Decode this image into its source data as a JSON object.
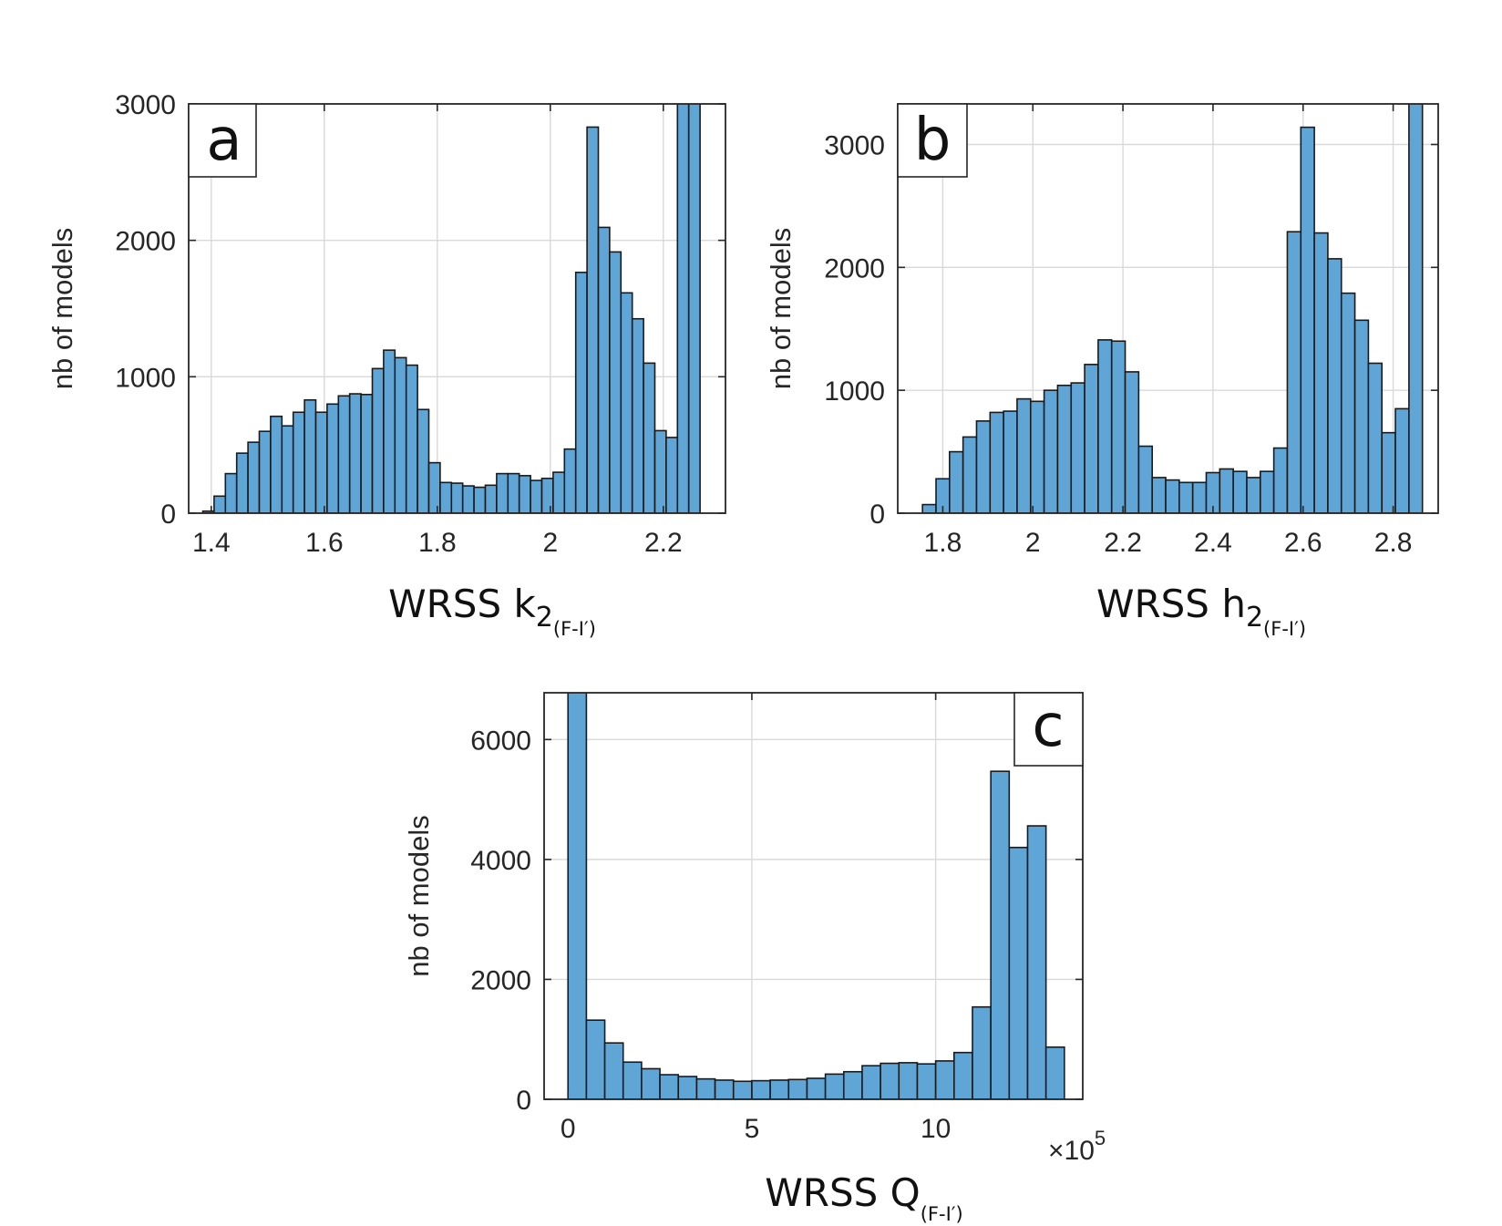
{
  "chart_data": [
    {
      "type": "bar",
      "panel_label": "a",
      "xlabel": "WRSS k",
      "xlabel_subscript": "2",
      "xlabel_subscript2": "(F-I′)",
      "ylabel": "nb of models",
      "xlim": [
        1.36,
        2.31
      ],
      "ylim": [
        0,
        3000
      ],
      "xticks": [
        1.4,
        1.6,
        1.8,
        2.0,
        2.2
      ],
      "xtick_labels": [
        "1.4",
        "1.6",
        "1.8",
        "2",
        "2.2"
      ],
      "yticks": [
        0,
        1000,
        2000,
        3000
      ],
      "ytick_labels": [
        "0",
        "1000",
        "2000",
        "3000"
      ],
      "grid": true,
      "bin_start": 1.385,
      "bin_width": 0.02,
      "values": [
        15,
        125,
        290,
        440,
        520,
        600,
        710,
        640,
        740,
        830,
        740,
        800,
        860,
        875,
        870,
        1060,
        1195,
        1140,
        1085,
        760,
        370,
        225,
        220,
        200,
        190,
        205,
        290,
        290,
        275,
        240,
        255,
        300,
        470,
        1765,
        2830,
        2095,
        1915,
        1615,
        1425,
        1100,
        605,
        555,
        3100,
        3100
      ]
    },
    {
      "type": "bar",
      "panel_label": "b",
      "xlabel": "WRSS h",
      "xlabel_subscript": "2",
      "xlabel_subscript2": "(F-I′)",
      "ylabel": "nb of models",
      "xlim": [
        1.7,
        2.9
      ],
      "ylim": [
        0,
        3330
      ],
      "xticks": [
        1.8,
        2.0,
        2.2,
        2.4,
        2.6,
        2.8
      ],
      "xtick_labels": [
        "1.8",
        "2",
        "2.2",
        "2.4",
        "2.6",
        "2.8"
      ],
      "yticks": [
        0,
        1000,
        2000,
        3000
      ],
      "ytick_labels": [
        "0",
        "1000",
        "2000",
        "3000"
      ],
      "grid": true,
      "bin_start": 1.755,
      "bin_width": 0.03,
      "values": [
        70,
        280,
        500,
        620,
        750,
        820,
        830,
        930,
        910,
        1000,
        1040,
        1060,
        1210,
        1410,
        1400,
        1150,
        545,
        290,
        270,
        250,
        250,
        330,
        360,
        340,
        290,
        340,
        530,
        2290,
        3140,
        2280,
        2070,
        1790,
        1570,
        1220,
        655,
        850,
        3400
      ]
    },
    {
      "type": "bar",
      "panel_label": "c",
      "xlabel": "WRSS Q",
      "xlabel_subscript": "(F-I′)",
      "ylabel": "nb of models",
      "x_multiplier": "×10",
      "x_multiplier_exp": "5",
      "xlim": [
        -0.65,
        14.0
      ],
      "ylim": [
        0,
        6780
      ],
      "xticks": [
        0,
        5,
        10
      ],
      "xtick_labels": [
        "0",
        "5",
        "10"
      ],
      "yticks": [
        0,
        2000,
        4000,
        6000
      ],
      "ytick_labels": [
        "0",
        "2000",
        "4000",
        "6000"
      ],
      "grid": true,
      "bin_start": 0.0,
      "bin_width": 0.5,
      "values": [
        7000,
        1320,
        940,
        620,
        510,
        410,
        380,
        340,
        320,
        300,
        310,
        320,
        330,
        350,
        420,
        460,
        560,
        600,
        610,
        590,
        640,
        780,
        1540,
        5470,
        4200,
        4560,
        870
      ]
    }
  ]
}
